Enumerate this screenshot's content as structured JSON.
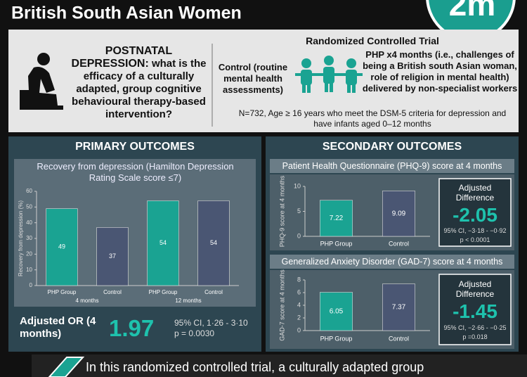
{
  "header": {
    "title": "British South Asian Women",
    "logo": "2m"
  },
  "intro": {
    "heading": "POSTNATAL DEPRESSION:",
    "question": "what is the efficacy of a culturally adapted, group cognitive behavioural therapy-based intervention?"
  },
  "trial": {
    "title": "Randomized Controlled Trial",
    "control": "Control (routine mental health assessments)",
    "intervention": "PHP x4 months (i.e., challenges of being a British south Asian woman, role of religion in mental health) delivered by non-specialist workers",
    "population": "N=732, Age ≥ 16 years who meet the DSM-5 criteria for depression and have infants aged 0–12 months"
  },
  "primary": {
    "heading": "PRIMARY OUTCOMES",
    "result_label": "Adjusted OR (4 months)",
    "result": 1.97,
    "ci": "95% CI, 1·26 - 3·10",
    "p": "p = 0.0030"
  },
  "secondary": {
    "heading": "SECONDARY OUTCOMES",
    "phq": {
      "label": "Adjusted Difference",
      "result": -2.05,
      "ci": "95% CI, −3·18 - −0·92",
      "p": "p < 0.0001"
    },
    "gad": {
      "label": "Adjusted Difference",
      "result": -1.45,
      "ci": "95% CI, −2·66 - −0·25",
      "p": "p =0.018"
    }
  },
  "chart_data": [
    {
      "type": "bar",
      "title": "Recovery from depression (Hamilton Depression Rating Scale score ≤7)",
      "y_label": "Recovery from depression (%)",
      "categories": [
        "PHP Group",
        "Control",
        "PHP Group",
        "Control"
      ],
      "groups": [
        "4 months",
        "12 months"
      ],
      "values": [
        49,
        37,
        54,
        54
      ],
      "colors": [
        "#1aa392",
        "#4a5673",
        "#1aa392",
        "#4a5673"
      ],
      "ylim": [
        0,
        60
      ],
      "yticks": [
        0,
        10,
        20,
        30,
        40,
        50,
        60
      ]
    },
    {
      "type": "bar",
      "title": "Patient Health Questionnaire (PHQ-9) score at 4 months",
      "y_label": "PHQ-9 score at 4 months",
      "categories": [
        "PHP Group",
        "Control"
      ],
      "values": [
        7.22,
        9.09
      ],
      "colors": [
        "#1aa392",
        "#4a5673"
      ],
      "ylim": [
        0,
        10
      ],
      "yticks": [
        0,
        5,
        10
      ]
    },
    {
      "type": "bar",
      "title": "Generalized Anxiety Disorder (GAD-7) score at 4 months",
      "y_label": "GAD-7 score at 4 months",
      "categories": [
        "PHP Group",
        "Control"
      ],
      "values": [
        6.05,
        7.37
      ],
      "colors": [
        "#1aa392",
        "#4a5673"
      ],
      "ylim": [
        0,
        8
      ],
      "yticks": [
        0,
        2,
        4,
        6,
        8
      ]
    }
  ],
  "footer": {
    "text": "In this randomized controlled trial, a culturally adapted group"
  }
}
